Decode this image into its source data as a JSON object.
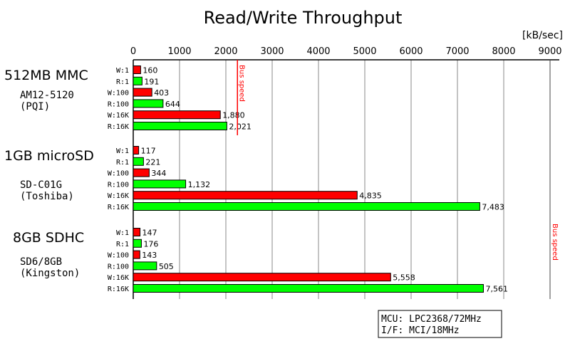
{
  "chart_data": {
    "type": "bar",
    "orientation": "horizontal",
    "title": "Read/Write Throughput",
    "unit_label": "[kB/sec]",
    "xlim": [
      0,
      9000
    ],
    "ticks": [
      0,
      1000,
      2000,
      3000,
      4000,
      5000,
      6000,
      7000,
      8000,
      9000
    ],
    "grid": true,
    "colors": {
      "write": "#ff0000",
      "read": "#00ff00"
    },
    "groups": [
      {
        "name": "512MB MMC",
        "model": "AM12-5120",
        "maker": "(PQI)",
        "bus_speed": 2250,
        "bus_label": "Bus speed",
        "bars": [
          {
            "label": "W:1",
            "value": 160,
            "text": "160"
          },
          {
            "label": "R:1",
            "value": 191,
            "text": "191"
          },
          {
            "label": "W:100",
            "value": 403,
            "text": "403"
          },
          {
            "label": "R:100",
            "value": 644,
            "text": "644"
          },
          {
            "label": "W:16K",
            "value": 1880,
            "text": "1,880"
          },
          {
            "label": "R:16K",
            "value": 2021,
            "text": "2,021"
          }
        ]
      },
      {
        "name": "1GB microSD",
        "model": "SD-C01G",
        "maker": "(Toshiba)",
        "bars": [
          {
            "label": "W:1",
            "value": 117,
            "text": "117"
          },
          {
            "label": "R:1",
            "value": 221,
            "text": "221"
          },
          {
            "label": "W:100",
            "value": 344,
            "text": "344"
          },
          {
            "label": "R:100",
            "value": 1132,
            "text": "1,132"
          },
          {
            "label": "W:16K",
            "value": 4835,
            "text": "4,835"
          },
          {
            "label": "R:16K",
            "value": 7483,
            "text": "7,483"
          }
        ]
      },
      {
        "name": "8GB SDHC",
        "model": "SD6/8GB",
        "maker": "(Kingston)",
        "bars": [
          {
            "label": "W:1",
            "value": 147,
            "text": "147"
          },
          {
            "label": "R:1",
            "value": 176,
            "text": "176"
          },
          {
            "label": "W:100",
            "value": 143,
            "text": "143"
          },
          {
            "label": "R:100",
            "value": 505,
            "text": "505"
          },
          {
            "label": "W:16K",
            "value": 5558,
            "text": "5,558"
          },
          {
            "label": "R:16K",
            "value": 7561,
            "text": "7,561"
          }
        ]
      }
    ],
    "bus_speed_sd": {
      "value": 9000,
      "label": "Bus speed"
    },
    "annotation": [
      "MCU: LPC2368/72MHz",
      "I/F: MCI/18MHz"
    ]
  }
}
